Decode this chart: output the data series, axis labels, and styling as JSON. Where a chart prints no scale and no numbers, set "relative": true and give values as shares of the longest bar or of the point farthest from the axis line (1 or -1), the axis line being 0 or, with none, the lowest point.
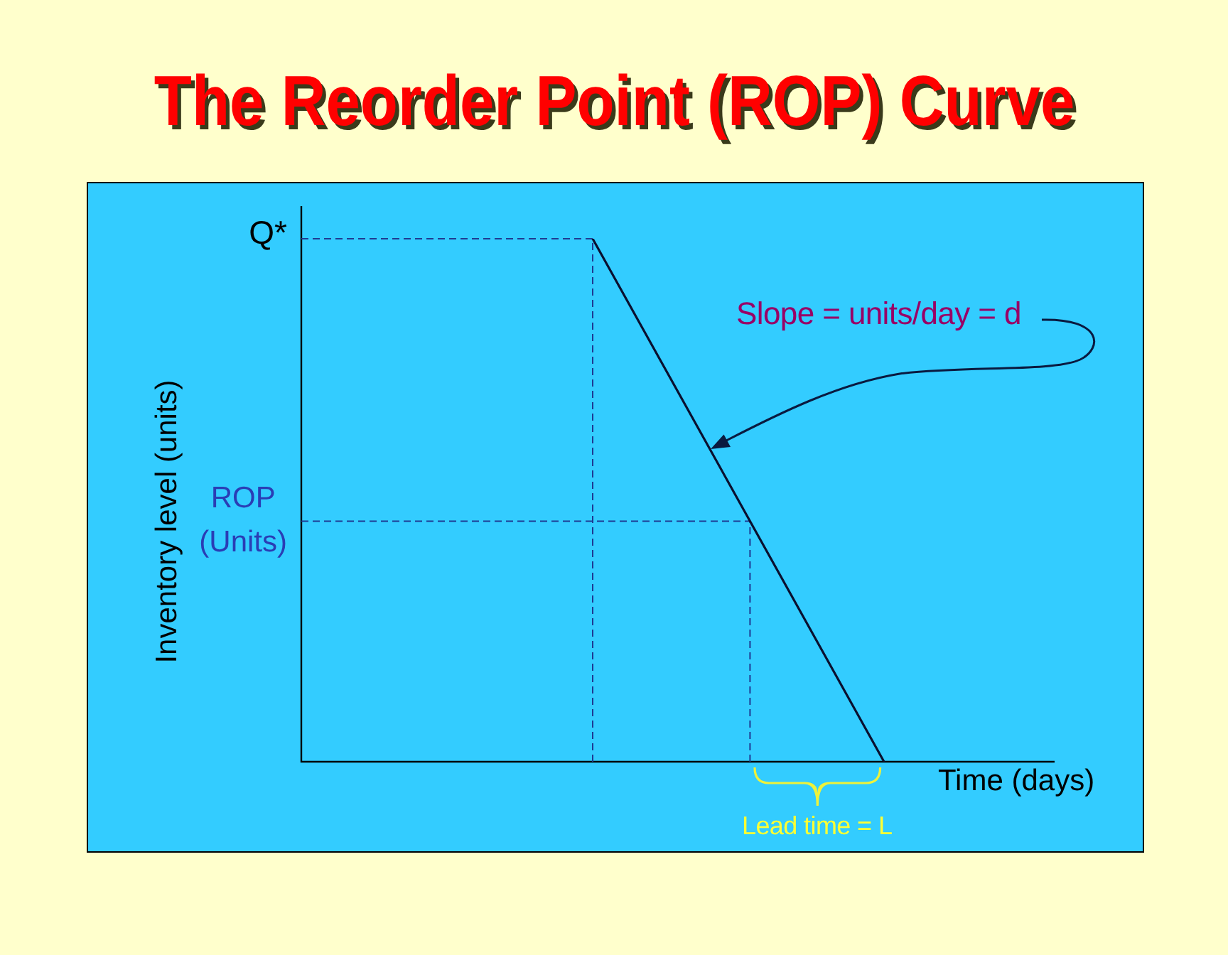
{
  "chart_data": {
    "type": "line",
    "title": "The Reorder Point (ROP) Curve",
    "xlabel": "Time (days)",
    "ylabel": "Inventory level (units)",
    "categories": [
      null,
      null,
      null
    ],
    "series": [
      {
        "color": "#0a1030",
        "values": [
          null,
          1,
          0
        ]
      }
    ],
    "relative": true,
    "tick_labels": false,
    "ref_lines": [
      {
        "axis": "y",
        "value": 1,
        "label": "Q*",
        "color": "#1f3a93",
        "line_style": "dashed"
      },
      {
        "axis": "y",
        "value": 0.46,
        "label": "ROP\n(Units)",
        "color": "#1f3a93",
        "line_style": "dashed"
      }
    ],
    "annotations": [
      "Slope = units/day = d",
      "Lead time = L"
    ]
  }
}
